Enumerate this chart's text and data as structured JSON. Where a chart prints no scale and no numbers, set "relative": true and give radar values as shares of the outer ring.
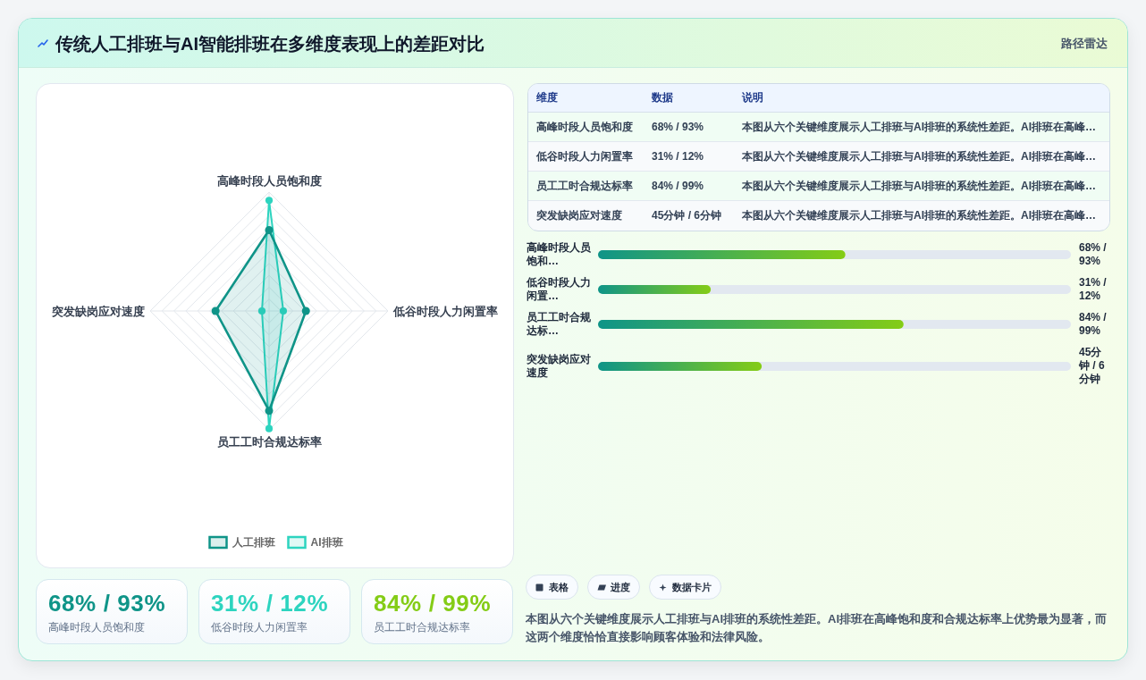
{
  "chart_data": [
    {
      "type": "radar",
      "title": "传统人工排班与AI智能排班在多维度表现上的差距对比",
      "categories": [
        "高峰时段人员饱和度",
        "低谷时段人力闲置率",
        "员工工时合规达标率",
        "突发缺岗应对速度"
      ],
      "relative": true,
      "series": [
        {
          "name": "人工排班",
          "color": "#0f9488",
          "values": [
            0.68,
            0.31,
            0.84,
            0.45
          ]
        },
        {
          "name": "AI排班",
          "color": "#2dd4bf",
          "values": [
            0.93,
            0.12,
            0.99,
            0.06
          ]
        }
      ],
      "grid": true,
      "legend": "bottom",
      "marker": "circle"
    },
    {
      "type": "other",
      "title": "路径雷达",
      "categories": [
        "维度",
        "数据",
        "说明"
      ],
      "cell_labels": [
        [
          "高峰时段人员饱和度",
          "68% / 93%",
          "本图从六个关键维度展示人工排班与AI排班的系统性差距。AI排班在高峰…"
        ],
        [
          "低谷时段人力闲置率",
          "31% / 12%",
          "本图从六个关键维度展示人工排班与AI排班的系统性差距。AI排班在高峰…"
        ],
        [
          "员工工时合规达标率",
          "84% / 99%",
          "本图从六个关键维度展示人工排班与AI排班的系统性差距。AI排班在高峰…"
        ],
        [
          "突发缺岗应对速度",
          "45分钟 / 6分钟",
          "本图从六个关键维度展示人工排班与AI排班的系统性差距。AI排班在高峰…"
        ]
      ]
    },
    {
      "type": "bar",
      "orientation": "horizontal",
      "categories": [
        "高峰时段人员饱和…",
        "低谷时段人力闲置…",
        "员工工时合规达标…",
        "突发缺岗应对速度"
      ],
      "values": [
        68,
        31,
        84,
        45
      ],
      "xlim": [
        0,
        130
      ],
      "color": "#0f9488",
      "value_labels": [
        "68% / 93%",
        "31% / 12%",
        "84% / 99%",
        "45分钟 / 6分钟"
      ]
    },
    {
      "type": "other",
      "categories": [
        "高峰时段人员饱和度",
        "低谷时段人力闲置率",
        "员工工时合规达标率"
      ],
      "value_labels": [
        "68% / 93%",
        "31% / 12%",
        "84% / 99%"
      ]
    },
    {
      "type": "other",
      "annotations": [
        "表格",
        "进度",
        "数据卡片",
        "本图从六个关键维度展示人工排班与AI排班的系统性差距。AI排班在高峰饱和度和合规达标率上优势最为显著，而这两个维度恰恰直接影响顾客体验和法律风险。"
      ]
    }
  ]
}
